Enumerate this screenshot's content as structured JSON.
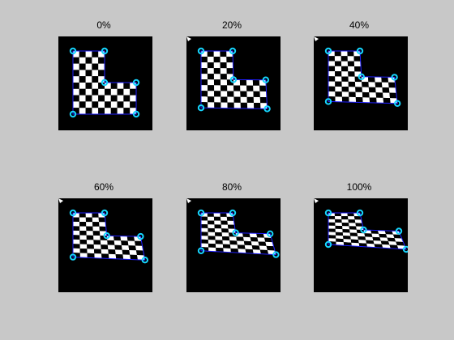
{
  "figure": {
    "background": "#c8c8c8",
    "panel_color": "#000000",
    "polygon_color": "#1f1fff",
    "marker_color": "#16d6ff",
    "panels": [
      {
        "label": "0%",
        "progress": 0.0
      },
      {
        "label": "20%",
        "progress": 0.2
      },
      {
        "label": "40%",
        "progress": 0.4
      },
      {
        "label": "60%",
        "progress": 0.6
      },
      {
        "label": "80%",
        "progress": 0.8
      },
      {
        "label": "100%",
        "progress": 1.0
      }
    ]
  }
}
